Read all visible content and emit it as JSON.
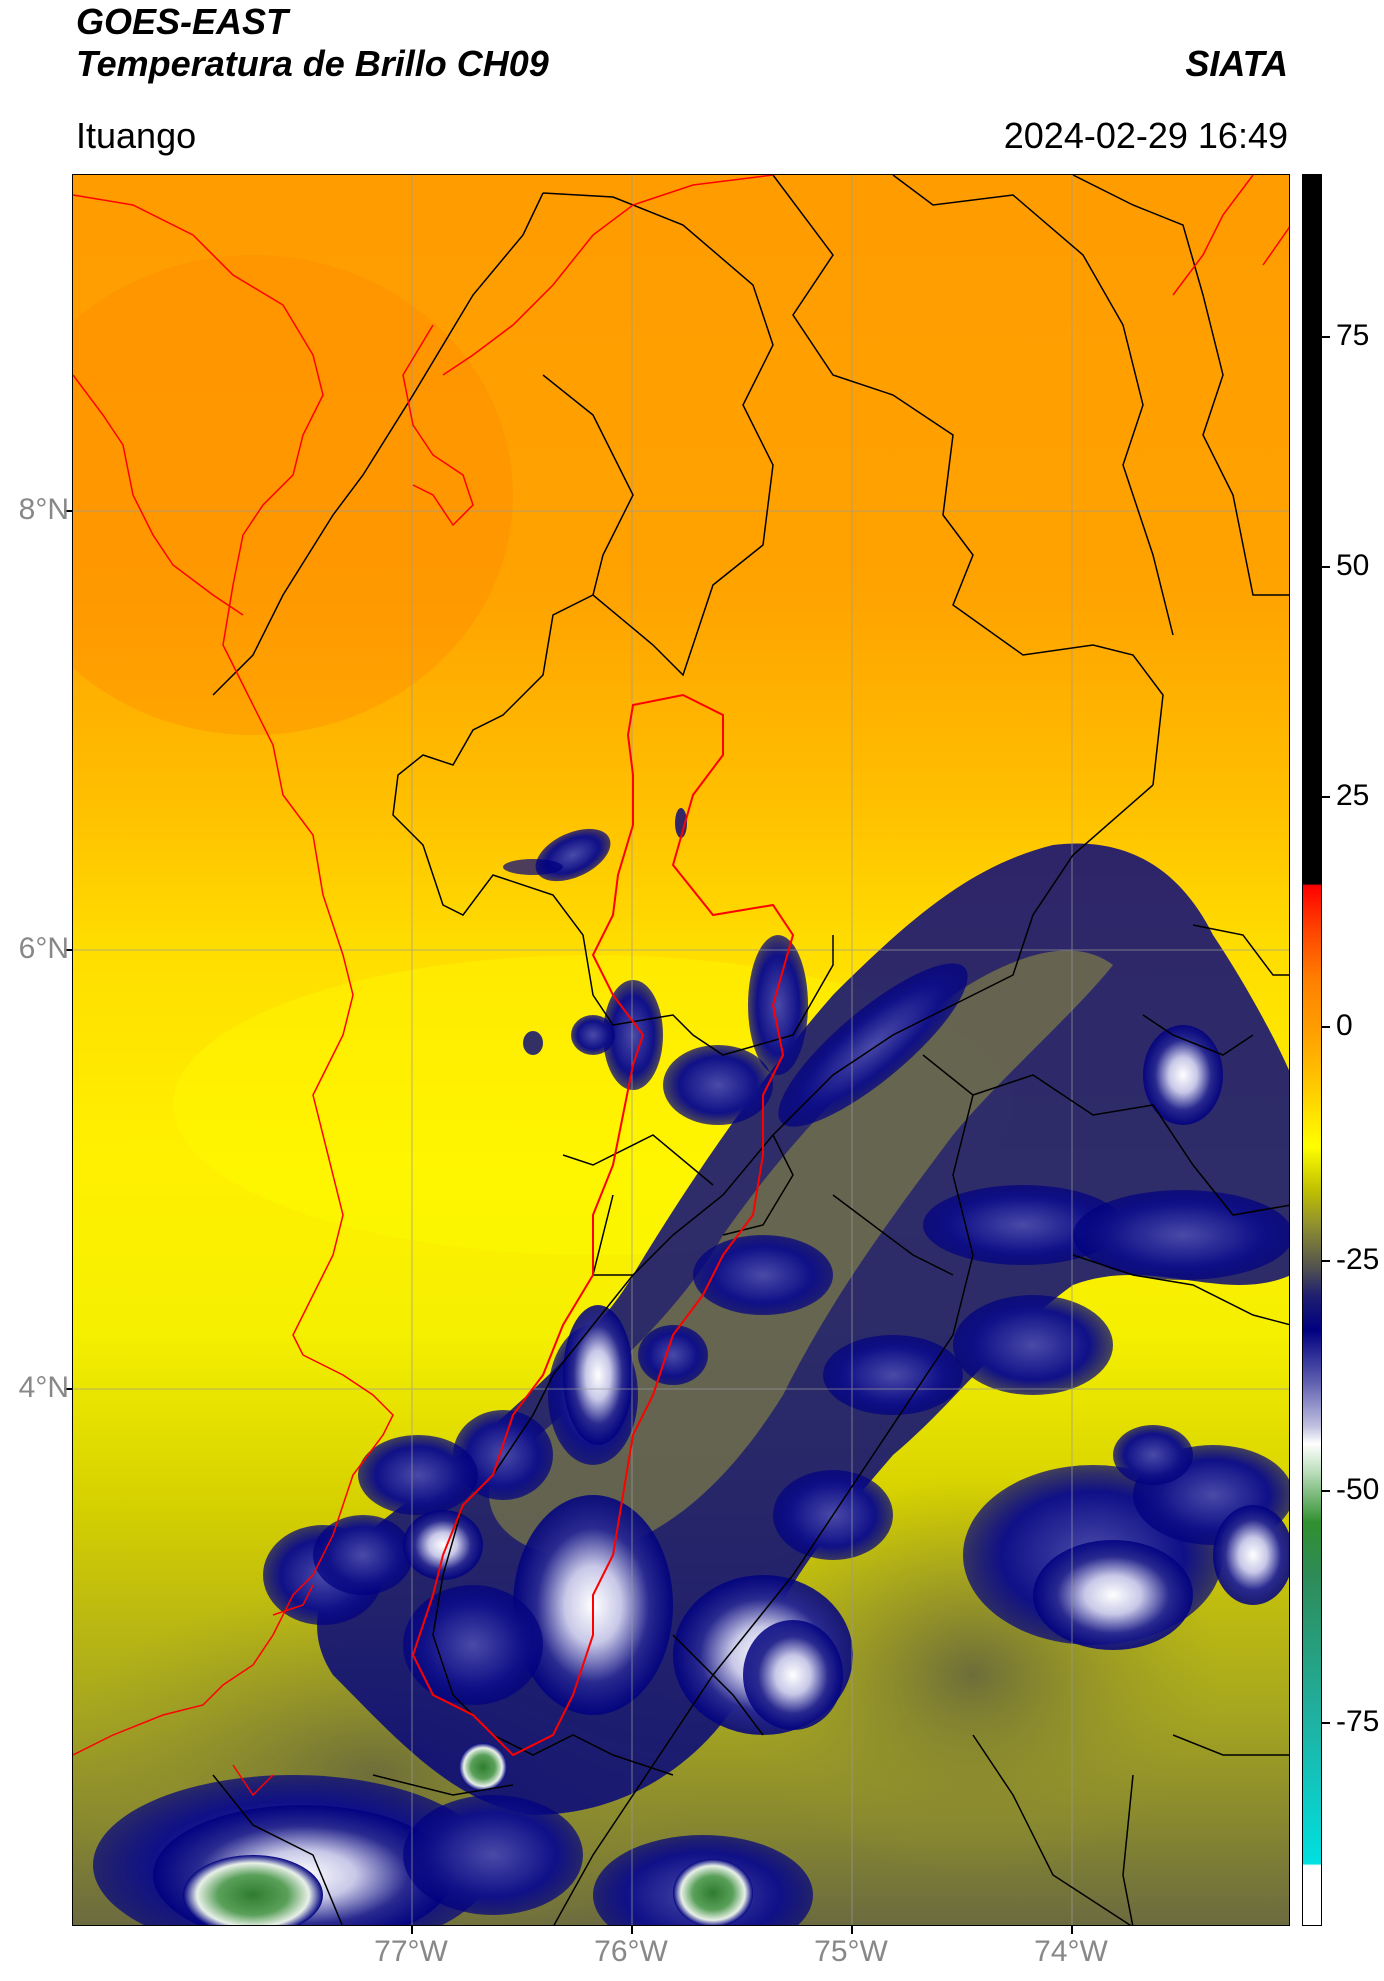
{
  "header": {
    "title": "GOES-EAST",
    "subtitle": "Temperatura de Brillo CH09",
    "organization": "SIATA",
    "location": "Ituango",
    "datetime": "2024-02-29 16:49"
  },
  "map": {
    "latitude_labels": [
      "8°N",
      "6°N",
      "4°N"
    ],
    "longitude_labels": [
      "77°W",
      "76°W",
      "75°W",
      "74°W"
    ],
    "border_colors": {
      "coastline": "#ff0000",
      "departments": "#000000",
      "highlight_region": "#ff0000"
    }
  },
  "colorbar": {
    "tick_labels": [
      "75",
      "50",
      "25",
      "0",
      "-25",
      "-50",
      "-75"
    ],
    "colors": {
      "warm_black": "#000000",
      "red": "#ff0000",
      "orange": "#ff9a00",
      "yellow": "#ffff00",
      "olive": "#a0a020",
      "gray": "#505050",
      "navy": "#000080",
      "white": "#ffffff",
      "green": "#2e8b2e",
      "cyan": "#00e0e0"
    }
  }
}
